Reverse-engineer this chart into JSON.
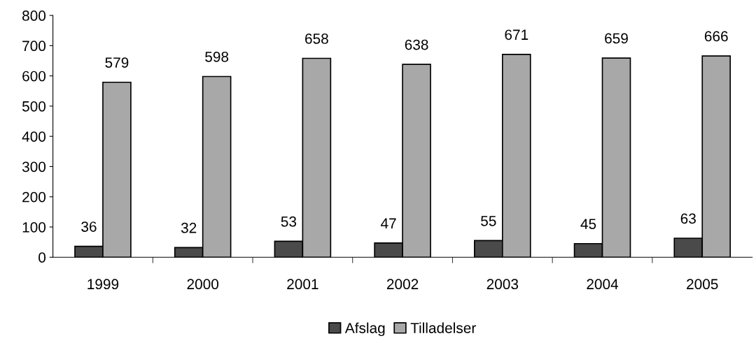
{
  "chart_data": {
    "type": "bar",
    "categories": [
      "1999",
      "2000",
      "2001",
      "2002",
      "2003",
      "2004",
      "2005"
    ],
    "series": [
      {
        "name": "Afslag",
        "color": "#4a4a4a",
        "values": [
          36,
          32,
          53,
          47,
          55,
          45,
          63
        ]
      },
      {
        "name": "Tilladelser",
        "color": "#a8a8a8",
        "values": [
          579,
          598,
          658,
          638,
          671,
          659,
          666
        ]
      }
    ],
    "ylim": [
      0,
      800
    ],
    "yticks": [
      0,
      100,
      200,
      300,
      400,
      500,
      600,
      700,
      800
    ],
    "data_labels": true,
    "legend": "bottom",
    "grid": false
  }
}
